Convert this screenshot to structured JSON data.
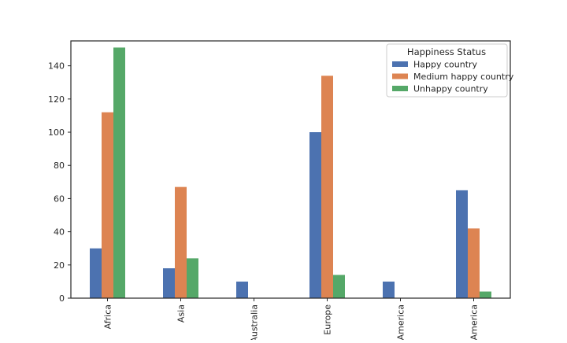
{
  "chart_data": {
    "type": "bar",
    "title": "",
    "xlabel": "",
    "ylabel": "",
    "categories": [
      "Africa",
      "Asia",
      "Australia",
      "Europe",
      "America",
      "America"
    ],
    "series": [
      {
        "name": "Happy country",
        "values": [
          30,
          18,
          10,
          100,
          10,
          65
        ],
        "color": "#4c72b0"
      },
      {
        "name": "Medium happy country",
        "values": [
          112,
          67,
          0,
          134,
          0,
          42
        ],
        "color": "#dd8452"
      },
      {
        "name": "Unhappy country",
        "values": [
          151,
          24,
          0,
          14,
          0,
          4
        ],
        "color": "#55a868"
      }
    ],
    "ylim": [
      0,
      155
    ],
    "yticks": [
      0,
      20,
      40,
      60,
      80,
      100,
      120,
      140
    ],
    "grid": false,
    "legend": {
      "title": "Happiness Status",
      "placement": "top-right"
    }
  }
}
